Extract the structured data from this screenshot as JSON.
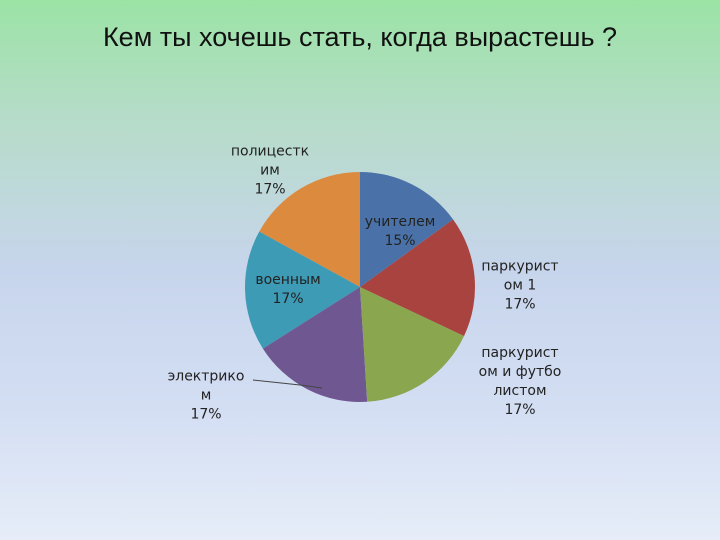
{
  "chart_data": {
    "type": "pie",
    "title": "Кем ты хочешь стать, когда вырастешь ?",
    "categories": [
      "учителем",
      "паркуристом 1",
      "паркуристом и футболистом",
      "электриком",
      "военным",
      "полицестким"
    ],
    "values": [
      15,
      17,
      17,
      17,
      17,
      17
    ],
    "value_labels": [
      "15%",
      "17%",
      "17%",
      "17%",
      "17%",
      "17%"
    ],
    "colors": [
      "#4a72a8",
      "#a9433f",
      "#8aa64e",
      "#6f5891",
      "#3e9bb5",
      "#dc8a3e"
    ]
  }
}
